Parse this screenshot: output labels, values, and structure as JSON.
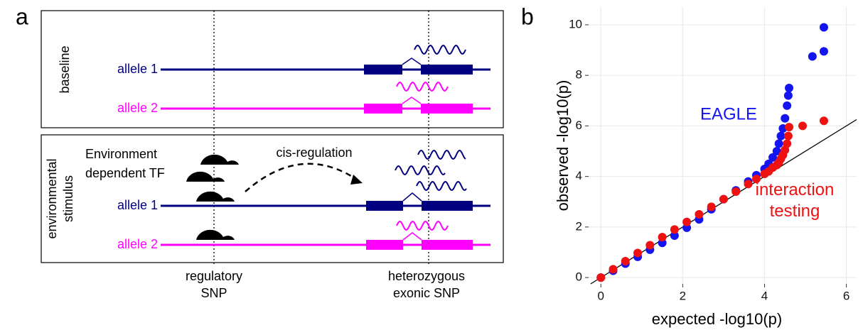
{
  "panel_a": {
    "label": "a",
    "baseline": {
      "title": "baseline",
      "allele_1": "allele 1",
      "allele_2": "allele 2"
    },
    "stimulus": {
      "title": [
        "environmental",
        "stimulus"
      ],
      "tf_label": [
        "Environment",
        "dependent TF"
      ],
      "arrow_label": "cis-regulation",
      "allele_1": "allele 1",
      "allele_2": "allele 2"
    },
    "regulatory_snp": [
      "regulatory",
      "SNP"
    ],
    "exonic_snp": [
      "heterozygous",
      "exonic SNP"
    ]
  },
  "chart_data": {
    "type": "scatter",
    "panel_label": "b",
    "xlabel": "expected -log10(p)",
    "ylabel": "observed -log10(p)",
    "xlim": [
      -0.3,
      6.25
    ],
    "ylim": [
      -0.25,
      10.7
    ],
    "xticks": [
      0,
      2,
      4,
      6
    ],
    "yticks": [
      0,
      2,
      4,
      6,
      8,
      10
    ],
    "grid": true,
    "series": [
      {
        "name": "EAGLE",
        "color": "#1414f0",
        "x": [
          0,
          0.3,
          0.6,
          0.9,
          1.2,
          1.5,
          1.8,
          2.1,
          2.4,
          2.7,
          3.0,
          3.3,
          3.6,
          3.8,
          4.0,
          4.1,
          4.2,
          4.3,
          4.35,
          4.4,
          4.45,
          4.5,
          4.55,
          4.58,
          4.6,
          5.17,
          5.45,
          5.45
        ],
        "values": [
          0,
          0.27,
          0.55,
          0.82,
          1.1,
          1.37,
          1.66,
          1.97,
          2.3,
          2.7,
          3.1,
          3.45,
          3.8,
          4.05,
          4.3,
          4.5,
          4.75,
          5.0,
          5.3,
          5.6,
          5.9,
          6.3,
          6.8,
          7.2,
          7.5,
          8.75,
          8.95,
          9.9
        ]
      },
      {
        "name": "interaction testing",
        "color": "#ee1111",
        "x": [
          0,
          0.3,
          0.6,
          0.9,
          1.2,
          1.5,
          1.8,
          2.1,
          2.4,
          2.7,
          3.0,
          3.3,
          3.6,
          3.8,
          4.0,
          4.1,
          4.2,
          4.3,
          4.35,
          4.4,
          4.45,
          4.5,
          4.55,
          4.58,
          4.6,
          4.93,
          5.45
        ],
        "values": [
          0,
          0.33,
          0.65,
          0.97,
          1.28,
          1.6,
          1.9,
          2.2,
          2.5,
          2.8,
          3.1,
          3.4,
          3.7,
          3.9,
          4.1,
          4.2,
          4.35,
          4.45,
          4.55,
          4.7,
          4.85,
          5.05,
          5.3,
          5.6,
          5.95,
          6.0,
          6.2
        ]
      }
    ]
  }
}
